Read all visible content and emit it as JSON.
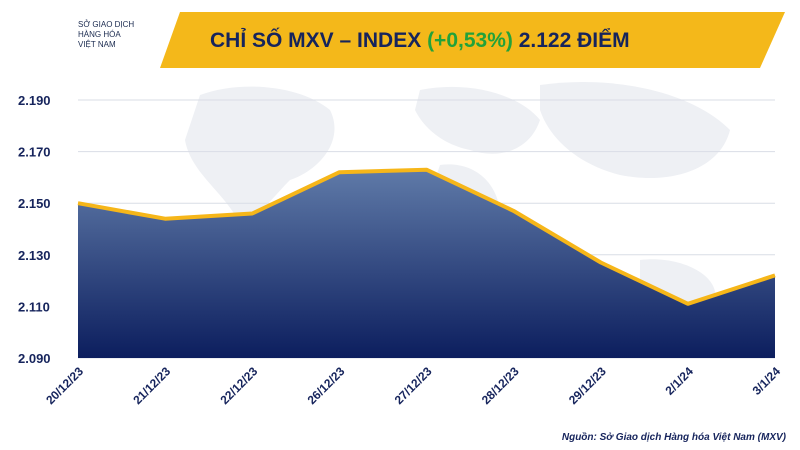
{
  "logo": {
    "line1": "SỞ GIAO DỊCH",
    "line2": "HÀNG HÓA",
    "line3": "VIỆT NAM"
  },
  "title": {
    "prefix": "CHỈ SỐ MXV – INDEX",
    "change": "(+0,53%)",
    "value": "2.122 ĐIỂM"
  },
  "colors": {
    "banner": "#f4b81a",
    "title_text": "#16245c",
    "change_text": "#23a23a",
    "area_top": "#5f7aa8",
    "area_bottom": "#0c1e5e",
    "line": "#f6b619",
    "grid": "#d9dde6"
  },
  "source": "Nguồn: Sở Giao dịch Hàng hóa Việt Nam (MXV)",
  "chart_data": {
    "type": "area",
    "title": "CHỈ SỐ MXV – INDEX (+0,53%) 2.122 ĐIỂM",
    "categories": [
      "20/12/23",
      "21/12/23",
      "22/12/23",
      "26/12/23",
      "27/12/23",
      "28/12/23",
      "29/12/23",
      "2/1/24",
      "3/1/24"
    ],
    "series": [
      {
        "values": [
          2150,
          2144,
          2146,
          2162,
          2163,
          2147,
          2127,
          2111,
          2122
        ]
      }
    ],
    "yticks": [
      "2.090",
      "2.110",
      "2.130",
      "2.150",
      "2.170",
      "2.190"
    ],
    "ytick_values": [
      2090,
      2110,
      2130,
      2150,
      2170,
      2190
    ],
    "ylim": [
      2090,
      2190
    ],
    "grid": true,
    "xlabel": "",
    "ylabel": ""
  }
}
